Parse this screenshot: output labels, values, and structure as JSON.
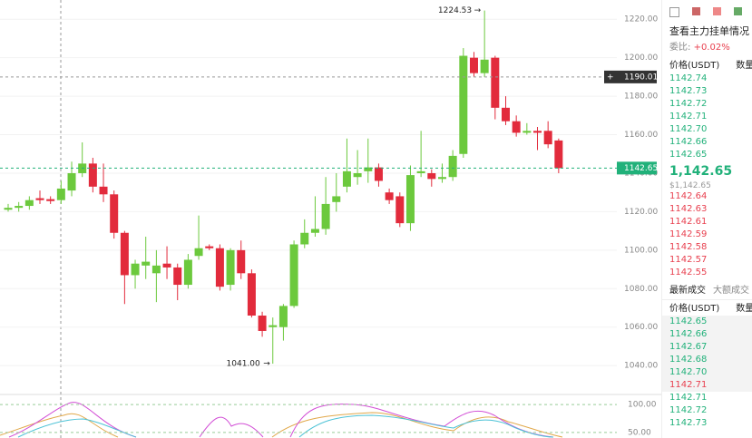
{
  "chart_data": {
    "type": "candlestick",
    "open": [
      1121,
      1122,
      1123,
      1127,
      1126.5,
      1126,
      1131,
      1140,
      1145,
      1133,
      1129,
      1109,
      1087,
      1092,
      1088,
      1093,
      1091,
      1082,
      1097,
      1102,
      1101,
      1082,
      1100,
      1088,
      1066,
      1060,
      1060,
      1071,
      1103,
      1109,
      1111,
      1125,
      1133,
      1138,
      1141,
      1143,
      1130,
      1128,
      1114,
      1140,
      1140,
      1137,
      1138,
      1150,
      1200,
      1192,
      1200,
      1174,
      1167,
      1161,
      1162,
      1162,
      1157
    ],
    "high": [
      1124,
      1125,
      1128,
      1131,
      1128,
      1136,
      1146,
      1156,
      1148,
      1145,
      1131,
      1110,
      1095,
      1107,
      1100,
      1102,
      1093,
      1098,
      1118,
      1103,
      1103,
      1101,
      1105,
      1090,
      1068,
      1065,
      1072,
      1105,
      1116,
      1128,
      1138,
      1140,
      1158,
      1152,
      1158,
      1145,
      1132,
      1130,
      1144,
      1162,
      1142,
      1145,
      1152,
      1205,
      1203,
      1224.53,
      1201,
      1180,
      1170,
      1166,
      1164,
      1167,
      1158
    ],
    "low": [
      1120,
      1120,
      1121,
      1124,
      1124,
      1124,
      1128,
      1138,
      1130,
      1125,
      1106,
      1072,
      1080,
      1085,
      1073,
      1085,
      1074,
      1080,
      1095,
      1100,
      1079,
      1079,
      1085,
      1065,
      1055,
      1041,
      1053,
      1070,
      1101,
      1107,
      1108,
      1120,
      1130,
      1134,
      1135,
      1133,
      1124,
      1112,
      1110,
      1138,
      1133,
      1135,
      1136,
      1148,
      1190,
      1190,
      1168,
      1165,
      1159,
      1160,
      1152,
      1153,
      1140
    ],
    "close": [
      1122,
      1123,
      1126,
      1126,
      1125.5,
      1132,
      1140,
      1145,
      1133,
      1129,
      1109,
      1087,
      1093,
      1094,
      1092,
      1091,
      1082,
      1095,
      1101,
      1101,
      1081,
      1100,
      1088,
      1066,
      1058,
      1061,
      1071,
      1103,
      1109,
      1111,
      1124,
      1128,
      1141,
      1140,
      1143,
      1136,
      1126,
      1114,
      1139,
      1141,
      1137,
      1138,
      1149,
      1201,
      1192,
      1199,
      1174,
      1167,
      1161,
      1162,
      1161,
      1155,
      1142.65
    ],
    "up_color": "#6cc93d",
    "down_color": "#e22b3c",
    "ylim": [
      1025,
      1230
    ],
    "yticks": [
      {
        "value": 1220,
        "label": "1220.00"
      },
      {
        "value": 1200,
        "label": "1200.00"
      },
      {
        "value": 1180,
        "label": "1180.00"
      },
      {
        "value": 1160,
        "label": "1160.00"
      },
      {
        "value": 1140,
        "label": "1140.00"
      },
      {
        "value": 1120,
        "label": "1120.00"
      },
      {
        "value": 1100,
        "label": "1100.00"
      },
      {
        "value": 1080,
        "label": "1080.00"
      },
      {
        "value": 1060,
        "label": "1060.00"
      },
      {
        "value": 1040,
        "label": "1040.00"
      }
    ],
    "max_label": 1224.53,
    "min_label": {
      "value": 1041,
      "label": "1041.00"
    },
    "crosshair_price": 1190.01,
    "current_price": 1142.65,
    "indicator_ylim": [
      40,
      118
    ],
    "indicator_yticks": [
      {
        "value": 100,
        "label": "100.00"
      },
      {
        "value": 50,
        "label": "50.00"
      }
    ]
  },
  "order_book": {
    "link": "查看主力挂单情况 >",
    "ratio_label": "委比:",
    "ratio": "+0.02%",
    "price_header": "价格(USDT)",
    "qty_header": "数量",
    "asks": [
      "1142.74",
      "1142.73",
      "1142.72",
      "1142.71",
      "1142.70",
      "1142.66",
      "1142.65"
    ],
    "last_price": "1,142.65",
    "last_price_usd": "$1,142.65",
    "bids": [
      "1142.64",
      "1142.63",
      "1142.61",
      "1142.59",
      "1142.58",
      "1142.57",
      "1142.55"
    ]
  },
  "trades": {
    "tabs": [
      "最新成交",
      "大额成交"
    ],
    "price_header": "价格(USDT)",
    "qty_header": "数量",
    "rows": [
      {
        "price": "1142.65",
        "color": "#21b17a"
      },
      {
        "price": "1142.66",
        "color": "#21b17a"
      },
      {
        "price": "1142.67",
        "color": "#21b17a"
      },
      {
        "price": "1142.68",
        "color": "#21b17a"
      },
      {
        "price": "1142.70",
        "color": "#21b17a"
      },
      {
        "price": "1142.71",
        "color": "#e8404f"
      },
      {
        "price": "1142.71",
        "color": "#21b17a"
      },
      {
        "price": "1142.72",
        "color": "#21b17a"
      },
      {
        "price": "1142.73",
        "color": "#21b17a"
      }
    ]
  }
}
